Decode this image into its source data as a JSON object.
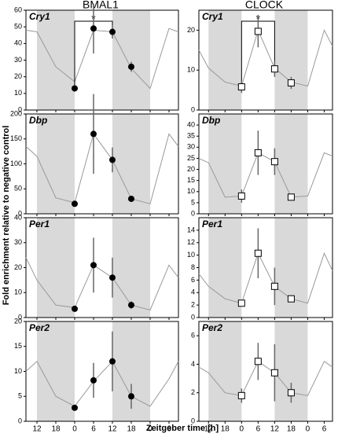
{
  "column_titles": [
    "BMAL1",
    "CLOCK"
  ],
  "y_label": "Fold enrichment relative to negative control",
  "x_label": "Zeitgeber time [h]",
  "chart_data": [
    {
      "type": "line",
      "title": "Cry1",
      "xlim": [
        -15.5,
        33
      ],
      "xticks": [
        {
          "value": -12,
          "label": "12"
        },
        {
          "value": -6,
          "label": "18"
        },
        0,
        6,
        {
          "value": 12,
          "label": "12"
        },
        {
          "value": 18,
          "label": "18"
        },
        {
          "value": 24,
          "label": "0"
        },
        {
          "value": 30,
          "label": "6"
        }
      ],
      "shaded": [
        [
          -12,
          0
        ],
        [
          12,
          24
        ]
      ],
      "ylim": [
        0,
        60
      ],
      "yticks": [
        0,
        10,
        20,
        30,
        40,
        50,
        60
      ],
      "x": [
        -15.5,
        -12,
        -6,
        0,
        6,
        12,
        18,
        24,
        30,
        33
      ],
      "values": [
        48,
        47,
        26,
        17,
        48,
        47,
        25,
        13,
        49,
        47
      ],
      "line_color": "#999999",
      "points": {
        "x": [
          0,
          6,
          12,
          18
        ],
        "values": [
          13,
          49,
          47,
          26
        ],
        "errors": [
          2,
          15,
          4,
          3
        ],
        "marker": "filled"
      },
      "annotation": "*"
    },
    {
      "type": "line",
      "title": "Cry1",
      "xlim": [
        -15.5,
        33
      ],
      "xticks": [
        {
          "value": -12,
          "label": "12"
        },
        {
          "value": -6,
          "label": "18"
        },
        0,
        6,
        {
          "value": 12,
          "label": "12"
        },
        {
          "value": 18,
          "label": "18"
        },
        {
          "value": 24,
          "label": "0"
        },
        {
          "value": 30,
          "label": "6"
        }
      ],
      "shaded": [
        [
          -12,
          0
        ],
        [
          12,
          24
        ]
      ],
      "ylim": [
        0,
        25
      ],
      "yticks": [
        0,
        10,
        20
      ],
      "x": [
        -15.5,
        -12,
        -6,
        0,
        6,
        12,
        18,
        24,
        30,
        33
      ],
      "values": [
        15,
        10.5,
        7,
        6,
        20,
        10.5,
        7,
        6,
        20,
        16
      ],
      "line_color": "#999999",
      "points": {
        "x": [
          0,
          6,
          12,
          18
        ],
        "values": [
          5.8,
          19.7,
          10.3,
          6.8
        ],
        "errors": [
          1.5,
          4,
          2,
          1.5
        ],
        "marker": "open"
      },
      "annotation": "*"
    },
    {
      "type": "line",
      "title": "Dbp",
      "xlim": [
        -15.5,
        33
      ],
      "xticks": [
        {
          "value": -12,
          "label": "12"
        },
        {
          "value": -6,
          "label": "18"
        },
        0,
        6,
        {
          "value": 12,
          "label": "12"
        },
        {
          "value": 18,
          "label": "18"
        },
        {
          "value": 24,
          "label": "0"
        },
        {
          "value": 30,
          "label": "6"
        }
      ],
      "shaded": [
        [
          -12,
          0
        ],
        [
          12,
          24
        ]
      ],
      "ylim": [
        0,
        200
      ],
      "yticks": [
        0,
        50,
        100,
        150,
        200
      ],
      "x": [
        -15.5,
        -12,
        -6,
        0,
        6,
        12,
        18,
        24,
        30,
        33
      ],
      "values": [
        135,
        115,
        32,
        22,
        160,
        108,
        30,
        20,
        160,
        135
      ],
      "line_color": "#999999",
      "points": {
        "x": [
          0,
          6,
          12,
          18
        ],
        "values": [
          20,
          160,
          108,
          30
        ],
        "errors": [
          5,
          80,
          25,
          5
        ],
        "marker": "filled"
      }
    },
    {
      "type": "line",
      "title": "Dbp",
      "xlim": [
        -15.5,
        33
      ],
      "xticks": [
        {
          "value": -12,
          "label": "12"
        },
        {
          "value": -6,
          "label": "18"
        },
        0,
        6,
        {
          "value": 12,
          "label": "12"
        },
        {
          "value": 18,
          "label": "18"
        },
        {
          "value": 24,
          "label": "0"
        },
        {
          "value": 30,
          "label": "6"
        }
      ],
      "shaded": [
        [
          -12,
          0
        ],
        [
          12,
          24
        ]
      ],
      "ylim": [
        0,
        45
      ],
      "yticks": [
        0,
        5,
        10,
        15,
        20,
        25,
        30,
        35,
        40
      ],
      "x": [
        -15.5,
        -12,
        -6,
        0,
        6,
        12,
        18,
        24,
        30,
        33
      ],
      "values": [
        25,
        23,
        7.5,
        8,
        27.5,
        23.5,
        7.5,
        8,
        27.5,
        26
      ],
      "line_color": "#999999",
      "points": {
        "x": [
          0,
          6,
          12,
          18
        ],
        "values": [
          8,
          27.5,
          23.5,
          7.5
        ],
        "errors": [
          3,
          10,
          6,
          1
        ],
        "marker": "open"
      }
    },
    {
      "type": "line",
      "title": "Per1",
      "xlim": [
        -15.5,
        33
      ],
      "xticks": [
        {
          "value": -12,
          "label": "12"
        },
        {
          "value": -6,
          "label": "18"
        },
        0,
        6,
        {
          "value": 12,
          "label": "12"
        },
        {
          "value": 18,
          "label": "18"
        },
        {
          "value": 24,
          "label": "0"
        },
        {
          "value": 30,
          "label": "6"
        }
      ],
      "shaded": [
        [
          -12,
          0
        ],
        [
          12,
          24
        ]
      ],
      "ylim": [
        0,
        40
      ],
      "yticks": [
        0,
        10,
        20,
        30,
        40
      ],
      "x": [
        -15.5,
        -12,
        -6,
        0,
        6,
        12,
        18,
        24,
        30,
        33
      ],
      "values": [
        24,
        15,
        5,
        4,
        21,
        16,
        5,
        3,
        21,
        16
      ],
      "line_color": "#999999",
      "points": {
        "x": [
          0,
          6,
          12,
          18
        ],
        "values": [
          3.5,
          21,
          16,
          5
        ],
        "errors": [
          1,
          11,
          8,
          1.5
        ],
        "marker": "filled"
      }
    },
    {
      "type": "line",
      "title": "Per1",
      "xlim": [
        -15.5,
        33
      ],
      "xticks": [
        {
          "value": -12,
          "label": "12"
        },
        {
          "value": -6,
          "label": "18"
        },
        0,
        6,
        {
          "value": 12,
          "label": "12"
        },
        {
          "value": 18,
          "label": "18"
        },
        {
          "value": 24,
          "label": "0"
        },
        {
          "value": 30,
          "label": "6"
        }
      ],
      "shaded": [
        [
          -12,
          0
        ],
        [
          12,
          24
        ]
      ],
      "ylim": [
        0,
        16
      ],
      "yticks": [
        0,
        2,
        4,
        6,
        8,
        10,
        12,
        14
      ],
      "x": [
        -15.5,
        -12,
        -6,
        0,
        6,
        12,
        18,
        24,
        30,
        33
      ],
      "values": [
        7,
        5,
        3,
        2.3,
        10.3,
        5,
        3,
        2.3,
        10.3,
        7.5
      ],
      "line_color": "#999999",
      "points": {
        "x": [
          0,
          6,
          12,
          18
        ],
        "values": [
          2.3,
          10.3,
          5,
          3
        ],
        "errors": [
          0.4,
          4,
          3,
          0.5
        ],
        "marker": "open"
      }
    },
    {
      "type": "line",
      "title": "Per2",
      "xlim": [
        -15.5,
        33
      ],
      "xticks": [
        {
          "value": -12,
          "label": "12"
        },
        {
          "value": -6,
          "label": "18"
        },
        0,
        6,
        {
          "value": 12,
          "label": "12"
        },
        {
          "value": 18,
          "label": "18"
        },
        {
          "value": 24,
          "label": "0"
        },
        {
          "value": 30,
          "label": "6"
        }
      ],
      "shaded": [
        [
          -12,
          0
        ],
        [
          12,
          24
        ]
      ],
      "ylim": [
        0,
        20
      ],
      "yticks": [
        0,
        5,
        10,
        15,
        20
      ],
      "x": [
        -15.5,
        -12,
        -6,
        0,
        6,
        12,
        18,
        24,
        30,
        33
      ],
      "values": [
        10,
        12,
        5,
        3,
        8,
        12,
        5,
        3,
        8.5,
        12
      ],
      "line_color": "#999999",
      "points": {
        "x": [
          0,
          6,
          12,
          18
        ],
        "values": [
          2.7,
          8.2,
          12,
          5
        ],
        "errors": [
          0.5,
          3.5,
          6,
          2.5
        ],
        "marker": "filled"
      }
    },
    {
      "type": "line",
      "title": "Per2",
      "xlim": [
        -15.5,
        33
      ],
      "xticks": [
        {
          "value": -12,
          "label": "12"
        },
        {
          "value": -6,
          "label": "18"
        },
        0,
        6,
        {
          "value": 12,
          "label": "12"
        },
        {
          "value": 18,
          "label": "18"
        },
        {
          "value": 24,
          "label": "0"
        },
        {
          "value": 30,
          "label": "6"
        }
      ],
      "shaded": [
        [
          -12,
          0
        ],
        [
          12,
          24
        ]
      ],
      "ylim": [
        0,
        7
      ],
      "yticks": [
        0,
        2,
        4,
        6
      ],
      "x": [
        -15.5,
        -12,
        -6,
        0,
        6,
        12,
        18,
        24,
        30,
        33
      ],
      "values": [
        3.8,
        3.4,
        2,
        1.8,
        4.2,
        3.4,
        2,
        1.8,
        4.2,
        3.8
      ],
      "line_color": "#999999",
      "points": {
        "x": [
          0,
          6,
          12,
          18
        ],
        "values": [
          1.8,
          4.2,
          3.4,
          2
        ],
        "errors": [
          0.5,
          1.3,
          2,
          0.7
        ],
        "marker": "open"
      }
    }
  ]
}
